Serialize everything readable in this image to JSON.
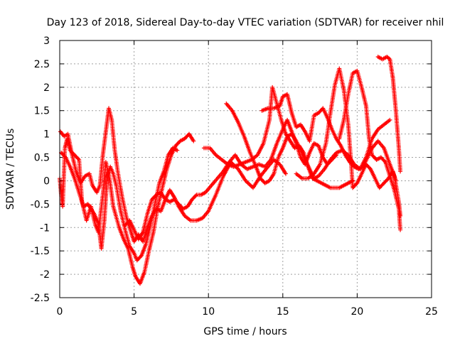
{
  "chart_data": {
    "type": "scatter",
    "title": "Day 123 of 2018, Sidereal Day-to-day VTEC variation (SDTVAR) for receiver nhil",
    "xlabel": "GPS time / hours",
    "ylabel": "SDTVAR / TECUs",
    "xlim": [
      0,
      25
    ],
    "ylim": [
      -2.5,
      3
    ],
    "xticks": [
      0,
      5,
      10,
      15,
      20,
      25
    ],
    "yticks": [
      -2.5,
      -2,
      -1.5,
      -1,
      -0.5,
      0,
      0.5,
      1,
      1.5,
      2,
      2.5,
      3
    ],
    "grid": true,
    "legend": "none",
    "marker": "+",
    "color": "#ff0000",
    "series": [
      {
        "points": [
          [
            0,
            0.05
          ],
          [
            0.1,
            -0.3
          ],
          [
            0.2,
            -0.55
          ],
          [
            0.35,
            0.7
          ],
          [
            0.5,
            0.9
          ],
          [
            0.7,
            0.65
          ],
          [
            1.0,
            0.55
          ],
          [
            1.3,
            0.45
          ],
          [
            1.5,
            -0.45
          ],
          [
            1.8,
            -0.85
          ],
          [
            2.1,
            -0.55
          ],
          [
            2.4,
            -0.95
          ],
          [
            2.6,
            -1.1
          ],
          [
            2.9,
            -0.3
          ],
          [
            3.1,
            0.4
          ],
          [
            3.35,
            0.05
          ],
          [
            3.6,
            -0.55
          ],
          [
            4.0,
            -1.0
          ],
          [
            4.3,
            -1.25
          ],
          [
            4.6,
            -1.45
          ],
          [
            4.9,
            -1.85
          ],
          [
            5.1,
            -2.05
          ],
          [
            5.4,
            -2.2
          ],
          [
            5.7,
            -1.95
          ],
          [
            6.0,
            -1.5
          ],
          [
            6.3,
            -1.1
          ],
          [
            6.6,
            -0.55
          ],
          [
            6.9,
            -0.15
          ],
          [
            7.2,
            0.25
          ],
          [
            7.5,
            0.55
          ],
          [
            7.8,
            0.75
          ],
          [
            8.1,
            0.85
          ],
          [
            8.4,
            0.9
          ],
          [
            8.7,
            1.0
          ],
          [
            9.0,
            0.85
          ]
        ]
      },
      {
        "points": [
          [
            0.05,
            1.05
          ],
          [
            0.3,
            0.95
          ],
          [
            0.55,
            1.0
          ],
          [
            0.8,
            0.6
          ],
          [
            1.1,
            0.2
          ],
          [
            1.4,
            -0.05
          ],
          [
            1.7,
            0.1
          ],
          [
            2.0,
            0.15
          ],
          [
            2.2,
            -0.1
          ],
          [
            2.5,
            -0.25
          ],
          [
            2.7,
            -0.1
          ],
          [
            2.9,
            0.55
          ],
          [
            3.1,
            1.05
          ],
          [
            3.3,
            1.55
          ],
          [
            3.5,
            1.3
          ],
          [
            3.7,
            0.65
          ],
          [
            3.9,
            0.2
          ],
          [
            4.2,
            -0.35
          ],
          [
            4.5,
            -0.8
          ],
          [
            4.8,
            -1.1
          ],
          [
            5.0,
            -1.3
          ],
          [
            5.3,
            -1.15
          ],
          [
            5.6,
            -1.3
          ],
          [
            5.9,
            -1.0
          ],
          [
            6.2,
            -0.75
          ],
          [
            6.5,
            -0.6
          ],
          [
            6.8,
            -0.65
          ],
          [
            7.1,
            -0.4
          ],
          [
            7.4,
            -0.2
          ],
          [
            7.7,
            -0.35
          ],
          [
            8.0,
            -0.55
          ],
          [
            8.4,
            -0.75
          ],
          [
            8.8,
            -0.85
          ],
          [
            9.2,
            -0.85
          ],
          [
            9.6,
            -0.8
          ],
          [
            10.0,
            -0.65
          ],
          [
            10.5,
            -0.3
          ],
          [
            11.0,
            0.1
          ],
          [
            11.5,
            0.4
          ],
          [
            12.0,
            0.25
          ],
          [
            12.5,
            0.0
          ],
          [
            13.0,
            -0.15
          ],
          [
            13.5,
            0.1
          ],
          [
            14.0,
            0.3
          ],
          [
            14.4,
            0.45
          ],
          [
            14.8,
            0.35
          ],
          [
            15.2,
            0.15
          ]
        ]
      },
      {
        "points": [
          [
            0.1,
            0.6
          ],
          [
            0.4,
            0.5
          ],
          [
            0.7,
            0.3
          ],
          [
            1.0,
            0.05
          ],
          [
            1.3,
            -0.25
          ],
          [
            1.6,
            -0.55
          ],
          [
            1.9,
            -0.5
          ],
          [
            2.3,
            -0.7
          ],
          [
            2.6,
            -0.9
          ],
          [
            2.8,
            -1.45
          ],
          [
            3.0,
            -0.85
          ],
          [
            3.2,
            0.1
          ],
          [
            3.4,
            0.3
          ],
          [
            3.6,
            0.15
          ],
          [
            3.8,
            -0.1
          ],
          [
            4.1,
            -0.65
          ],
          [
            4.4,
            -1.05
          ],
          [
            4.7,
            -1.4
          ],
          [
            5.0,
            -1.55
          ],
          [
            5.2,
            -1.7
          ],
          [
            5.5,
            -1.6
          ],
          [
            5.8,
            -1.35
          ],
          [
            6.1,
            -0.95
          ],
          [
            6.4,
            -0.5
          ],
          [
            6.7,
            -0.05
          ],
          [
            7.0,
            0.2
          ],
          [
            7.3,
            0.55
          ],
          [
            7.6,
            0.7
          ],
          [
            7.9,
            0.65
          ]
        ]
      },
      {
        "points": [
          [
            4.4,
            -0.95
          ],
          [
            4.7,
            -0.85
          ],
          [
            5.0,
            -1.05
          ],
          [
            5.3,
            -1.25
          ],
          [
            5.6,
            -1.1
          ],
          [
            5.9,
            -0.7
          ],
          [
            6.2,
            -0.4
          ],
          [
            6.5,
            -0.3
          ],
          [
            6.8,
            -0.25
          ],
          [
            7.1,
            -0.4
          ],
          [
            7.4,
            -0.45
          ],
          [
            7.7,
            -0.4
          ],
          [
            8.0,
            -0.5
          ],
          [
            8.3,
            -0.6
          ],
          [
            8.6,
            -0.55
          ],
          [
            8.9,
            -0.4
          ],
          [
            9.2,
            -0.3
          ],
          [
            9.5,
            -0.3
          ],
          [
            9.8,
            -0.25
          ],
          [
            10.2,
            -0.1
          ],
          [
            10.6,
            0.05
          ],
          [
            11.0,
            0.2
          ],
          [
            11.4,
            0.4
          ],
          [
            11.8,
            0.55
          ],
          [
            12.2,
            0.35
          ],
          [
            12.6,
            0.25
          ],
          [
            13.0,
            0.3
          ],
          [
            13.4,
            0.35
          ],
          [
            13.8,
            0.3
          ],
          [
            14.2,
            0.45
          ],
          [
            14.6,
            0.8
          ],
          [
            15.0,
            1.1
          ],
          [
            15.3,
            1.3
          ],
          [
            15.6,
            1.05
          ],
          [
            15.9,
            0.8
          ],
          [
            16.2,
            0.5
          ],
          [
            16.5,
            0.35
          ],
          [
            16.8,
            0.6
          ],
          [
            17.1,
            0.8
          ],
          [
            17.4,
            0.75
          ],
          [
            17.7,
            0.5
          ],
          [
            18.0,
            0.35
          ],
          [
            18.3,
            0.45
          ],
          [
            18.6,
            0.55
          ]
        ]
      },
      {
        "points": [
          [
            9.7,
            0.7
          ],
          [
            10.1,
            0.7
          ],
          [
            10.5,
            0.55
          ],
          [
            10.9,
            0.45
          ],
          [
            11.3,
            0.35
          ],
          [
            11.7,
            0.3
          ],
          [
            12.1,
            0.35
          ],
          [
            12.5,
            0.4
          ],
          [
            12.9,
            0.45
          ],
          [
            13.3,
            0.55
          ],
          [
            13.7,
            0.8
          ],
          [
            14.1,
            1.3
          ],
          [
            14.3,
            2.0
          ],
          [
            14.6,
            1.65
          ],
          [
            14.9,
            1.3
          ],
          [
            15.2,
            1.0
          ],
          [
            15.5,
            0.85
          ],
          [
            15.8,
            0.7
          ],
          [
            16.1,
            0.75
          ],
          [
            16.4,
            0.6
          ],
          [
            16.7,
            0.3
          ],
          [
            17.0,
            0.05
          ],
          [
            17.3,
            0.0
          ],
          [
            17.6,
            -0.05
          ],
          [
            17.9,
            -0.1
          ],
          [
            18.2,
            -0.15
          ],
          [
            18.5,
            -0.15
          ],
          [
            18.8,
            -0.15
          ],
          [
            19.1,
            -0.1
          ],
          [
            19.4,
            -0.05
          ],
          [
            19.7,
            0.0
          ]
        ]
      },
      {
        "points": [
          [
            11.2,
            1.65
          ],
          [
            11.6,
            1.5
          ],
          [
            12.0,
            1.25
          ],
          [
            12.4,
            0.95
          ],
          [
            12.8,
            0.6
          ],
          [
            13.2,
            0.3
          ],
          [
            13.5,
            0.05
          ],
          [
            13.8,
            -0.05
          ],
          [
            14.1,
            0.0
          ],
          [
            14.4,
            0.15
          ],
          [
            14.7,
            0.5
          ],
          [
            15.0,
            0.7
          ],
          [
            15.3,
            0.95
          ],
          [
            15.6,
            1.0
          ],
          [
            15.9,
            0.85
          ],
          [
            16.2,
            0.65
          ],
          [
            16.5,
            0.45
          ],
          [
            16.8,
            0.25
          ],
          [
            17.1,
            0.05
          ],
          [
            17.4,
            0.1
          ],
          [
            17.8,
            0.25
          ],
          [
            18.2,
            0.45
          ],
          [
            18.6,
            0.6
          ],
          [
            19.0,
            0.65
          ],
          [
            19.4,
            0.55
          ],
          [
            19.8,
            0.35
          ],
          [
            20.2,
            0.25
          ],
          [
            20.6,
            0.5
          ],
          [
            21.0,
            0.9
          ],
          [
            21.4,
            1.1
          ],
          [
            21.8,
            1.2
          ],
          [
            22.2,
            1.3
          ]
        ]
      },
      {
        "points": [
          [
            13.6,
            1.5
          ],
          [
            14.0,
            1.55
          ],
          [
            14.4,
            1.55
          ],
          [
            14.8,
            1.6
          ],
          [
            15.0,
            1.8
          ],
          [
            15.3,
            1.85
          ],
          [
            15.6,
            1.45
          ],
          [
            15.9,
            1.15
          ],
          [
            16.2,
            1.2
          ],
          [
            16.5,
            1.05
          ],
          [
            16.8,
            0.85
          ],
          [
            17.1,
            1.4
          ],
          [
            17.4,
            1.45
          ],
          [
            17.7,
            1.55
          ],
          [
            18.0,
            1.35
          ],
          [
            18.3,
            1.1
          ],
          [
            18.6,
            0.9
          ],
          [
            18.9,
            0.75
          ],
          [
            19.2,
            0.55
          ],
          [
            19.5,
            0.4
          ],
          [
            19.8,
            0.3
          ],
          [
            20.1,
            0.25
          ],
          [
            20.4,
            0.3
          ],
          [
            20.7,
            0.5
          ],
          [
            21.0,
            0.7
          ],
          [
            21.4,
            0.85
          ],
          [
            21.8,
            0.7
          ],
          [
            22.2,
            0.35
          ],
          [
            22.5,
            0.1
          ],
          [
            22.8,
            -0.45
          ],
          [
            22.9,
            -0.75
          ]
        ]
      },
      {
        "points": [
          [
            15.9,
            0.15
          ],
          [
            16.3,
            0.05
          ],
          [
            16.7,
            0.05
          ],
          [
            17.1,
            0.15
          ],
          [
            17.5,
            0.35
          ],
          [
            17.9,
            0.8
          ],
          [
            18.2,
            1.45
          ],
          [
            18.5,
            2.05
          ],
          [
            18.8,
            2.4
          ],
          [
            19.1,
            1.95
          ],
          [
            19.4,
            1.2
          ],
          [
            19.6,
            0.35
          ],
          [
            19.7,
            -0.15
          ],
          [
            20.0,
            -0.05
          ],
          [
            20.3,
            0.15
          ],
          [
            20.6,
            0.35
          ],
          [
            20.9,
            0.25
          ],
          [
            21.2,
            0.05
          ],
          [
            21.5,
            -0.15
          ],
          [
            21.8,
            -0.05
          ],
          [
            22.1,
            0.05
          ],
          [
            22.4,
            0.2
          ],
          [
            22.6,
            0.0
          ]
        ]
      },
      {
        "points": [
          [
            18.8,
            0.9
          ],
          [
            19.1,
            1.3
          ],
          [
            19.4,
            1.85
          ],
          [
            19.7,
            2.3
          ],
          [
            20.0,
            2.35
          ],
          [
            20.3,
            2.0
          ],
          [
            20.6,
            1.6
          ],
          [
            20.8,
            0.9
          ],
          [
            21.0,
            0.55
          ],
          [
            21.3,
            0.45
          ],
          [
            21.6,
            0.5
          ],
          [
            21.9,
            0.4
          ],
          [
            22.2,
            0.1
          ],
          [
            22.5,
            -0.2
          ],
          [
            22.8,
            -0.6
          ],
          [
            22.9,
            -1.05
          ]
        ]
      },
      {
        "points": [
          [
            21.4,
            2.65
          ],
          [
            21.7,
            2.6
          ],
          [
            22.0,
            2.65
          ],
          [
            22.2,
            2.6
          ],
          [
            22.4,
            2.2
          ],
          [
            22.6,
            1.5
          ],
          [
            22.8,
            0.7
          ],
          [
            22.9,
            0.2
          ]
        ]
      }
    ]
  }
}
